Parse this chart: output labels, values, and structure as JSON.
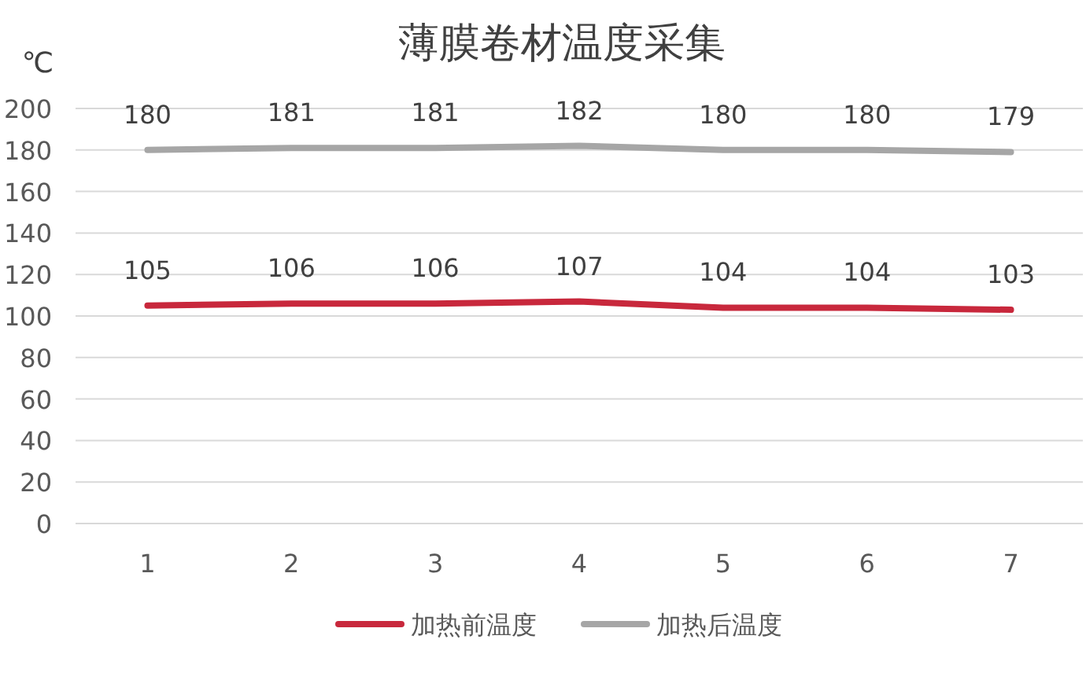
{
  "chart_data": {
    "type": "line",
    "title": "薄膜卷材温度采集",
    "ylabel": "℃",
    "categories": [
      "1",
      "2",
      "3",
      "4",
      "5",
      "6",
      "7"
    ],
    "series": [
      {
        "name": "加热前温度",
        "color": "#c8283c",
        "values": [
          105,
          106,
          106,
          107,
          104,
          104,
          103
        ]
      },
      {
        "name": "加热后温度",
        "color": "#a6a6a6",
        "values": [
          180,
          181,
          181,
          182,
          180,
          180,
          179
        ]
      }
    ],
    "ylim": [
      0,
      200
    ],
    "yticks": [
      0,
      20,
      40,
      60,
      80,
      100,
      120,
      140,
      160,
      180,
      200
    ],
    "grid": "y",
    "legend": "bottom",
    "data_labels": true
  }
}
